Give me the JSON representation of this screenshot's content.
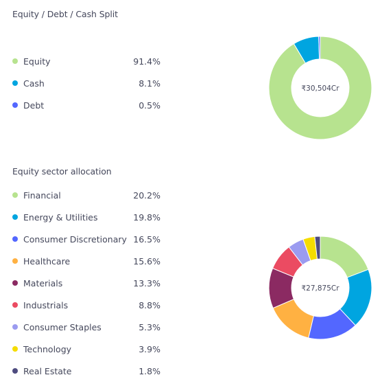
{
  "split": {
    "title": "Equity / Debt / Cash Split",
    "total": "₹30,504Cr",
    "items": [
      {
        "label": "Equity",
        "pct": "91.4%",
        "value": 91.4,
        "color": "#b7e38f"
      },
      {
        "label": "Cash",
        "pct": "8.1%",
        "value": 8.1,
        "color": "#00a5e0"
      },
      {
        "label": "Debt",
        "pct": "0.5%",
        "value": 0.5,
        "color": "#5367ff"
      }
    ]
  },
  "sector": {
    "title": "Equity sector allocation",
    "total": "₹27,875Cr",
    "items": [
      {
        "label": "Financial",
        "pct": "20.2%",
        "value": 20.2,
        "color": "#b7e38f"
      },
      {
        "label": "Energy & Utilities",
        "pct": "19.8%",
        "value": 19.8,
        "color": "#00a5e0"
      },
      {
        "label": "Consumer Discretionary",
        "pct": "16.5%",
        "value": 16.5,
        "color": "#5367ff"
      },
      {
        "label": "Healthcare",
        "pct": "15.6%",
        "value": 15.6,
        "color": "#ffb142"
      },
      {
        "label": "Materials",
        "pct": "13.3%",
        "value": 13.3,
        "color": "#8b2a62"
      },
      {
        "label": "Industrials",
        "pct": "8.8%",
        "value": 8.8,
        "color": "#eb4b62"
      },
      {
        "label": "Consumer Staples",
        "pct": "5.3%",
        "value": 5.3,
        "color": "#9b9bf0"
      },
      {
        "label": "Technology",
        "pct": "3.9%",
        "value": 3.9,
        "color": "#f5dc00"
      },
      {
        "label": "Real Estate",
        "pct": "1.8%",
        "value": 1.8,
        "color": "#4e4c7f"
      }
    ]
  }
}
